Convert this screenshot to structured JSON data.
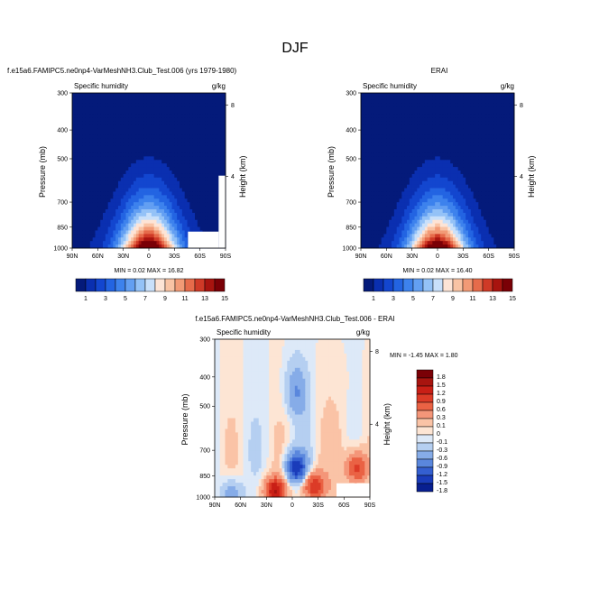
{
  "page": {
    "title": "DJF"
  },
  "panels": {
    "left": {
      "case_title": "f.e15a6.FAMIPC5.ne0np4-VarMeshNH3.Club_Test.006 (yrs 1979-1980)",
      "variable": "Specific humidity",
      "units": "g/kg",
      "ylabel": "Pressure (mb)",
      "ylabel_right": "Height (km)",
      "minmax": "MIN =  0.02  MAX =  16.82"
    },
    "right": {
      "case_title": "ERAI",
      "variable": "Specific humidity",
      "units": "g/kg",
      "ylabel": "Pressure (mb)",
      "ylabel_right": "Height (km)",
      "minmax": "MIN =  0.02  MAX =  16.40"
    },
    "diff": {
      "case_title": "f.e15a6.FAMIPC5.ne0np4-VarMeshNH3.Club_Test.006 - ERAI",
      "variable": "Specific humidity",
      "units": "g/kg",
      "ylabel": "Pressure (mb)",
      "ylabel_right": "Height (km)",
      "minmax": "MIN = -1.45  MAX =  1.80"
    }
  },
  "chart_data": [
    {
      "type": "heatmap",
      "name": "model",
      "x_tick_labels": [
        "90N",
        "60N",
        "30N",
        "0",
        "30S",
        "60S",
        "90S"
      ],
      "x_lat": [
        90,
        60,
        30,
        0,
        -30,
        -60,
        -90
      ],
      "y_tick_labels": [
        "300",
        "400",
        "500",
        "700",
        "850",
        "1000"
      ],
      "y_pressure": [
        300,
        400,
        500,
        700,
        850,
        1000
      ],
      "y_log_scale": true,
      "right_axis_ticks": [
        "8",
        "4"
      ],
      "right_axis_km": [
        8,
        4
      ],
      "levels": [
        1,
        2,
        3,
        4,
        5,
        6,
        7,
        8,
        9,
        10,
        11,
        12,
        13,
        14,
        15
      ],
      "colorbar_labels": [
        "1",
        "3",
        "5",
        "7",
        "9",
        "11",
        "13",
        "15"
      ],
      "min": 0.02,
      "max": 16.82,
      "peak_lat": 0,
      "peak_value": 16.8,
      "missing_region": "surface below 850 mb near 60S-90S"
    },
    {
      "type": "heatmap",
      "name": "reference",
      "x_tick_labels": [
        "90N",
        "60N",
        "30N",
        "0",
        "30S",
        "60S",
        "90S"
      ],
      "x_lat": [
        90,
        60,
        30,
        0,
        -30,
        -60,
        -90
      ],
      "y_tick_labels": [
        "300",
        "400",
        "500",
        "700",
        "850",
        "1000"
      ],
      "y_pressure": [
        300,
        400,
        500,
        700,
        850,
        1000
      ],
      "y_log_scale": true,
      "right_axis_ticks": [
        "8",
        "4"
      ],
      "right_axis_km": [
        8,
        4
      ],
      "levels": [
        1,
        2,
        3,
        4,
        5,
        6,
        7,
        8,
        9,
        10,
        11,
        12,
        13,
        14,
        15
      ],
      "colorbar_labels": [
        "1",
        "3",
        "5",
        "7",
        "9",
        "11",
        "13",
        "15"
      ],
      "min": 0.02,
      "max": 16.4,
      "peak_lat": 0,
      "peak_value": 16.4
    },
    {
      "type": "heatmap",
      "name": "difference",
      "x_tick_labels": [
        "90N",
        "60N",
        "30N",
        "0",
        "30S",
        "60S",
        "90S"
      ],
      "x_lat": [
        90,
        60,
        30,
        0,
        -30,
        -60,
        -90
      ],
      "y_tick_labels": [
        "300",
        "400",
        "500",
        "700",
        "850",
        "1000"
      ],
      "y_pressure": [
        300,
        400,
        500,
        700,
        850,
        1000
      ],
      "y_log_scale": true,
      "right_axis_ticks": [
        "8",
        "4"
      ],
      "right_axis_km": [
        8,
        4
      ],
      "levels": [
        1.8,
        1.5,
        1.2,
        0.9,
        0.6,
        0.3,
        0.1,
        0,
        -0.1,
        -0.3,
        -0.6,
        -0.9,
        -1.2,
        -1.5,
        -1.8
      ],
      "colorbar_labels": [
        "1.8",
        "1.5",
        "1.2",
        "0.9",
        "0.6",
        "0.3",
        "0.1",
        "0",
        "-0.1",
        "-0.3",
        "-0.6",
        "-0.9",
        "-1.2",
        "-1.5",
        "-1.8"
      ],
      "min": -1.45,
      "max": 1.8,
      "features": [
        {
          "lat": 20,
          "p": 950,
          "value": 1.5
        },
        {
          "lat": -25,
          "p": 920,
          "value": 1.2
        },
        {
          "lat": -75,
          "p": 800,
          "value": 1.0
        },
        {
          "lat": -5,
          "p": 800,
          "value": -1.45
        },
        {
          "lat": -5,
          "p": 450,
          "value": -0.6
        },
        {
          "lat": 70,
          "p": 970,
          "value": -0.5
        }
      ]
    }
  ],
  "colors": {
    "scale": [
      "#041a7a",
      "#0a2fb0",
      "#1346cf",
      "#2364e2",
      "#3d82ed",
      "#639ff2",
      "#94c2f7",
      "#c9e0fa",
      "#fde4d6",
      "#f9c3a4",
      "#f29a76",
      "#e66b4b",
      "#cf3a27",
      "#a8140f",
      "#7a0006"
    ],
    "diff_scale": [
      "#7a0006",
      "#a8140f",
      "#c91f16",
      "#dc3b27",
      "#ea6244",
      "#f49679",
      "#fac3a6",
      "#fde5d4",
      "#dde9f8",
      "#b5cff1",
      "#86ace8",
      "#5a87dd",
      "#345fd0",
      "#1a3cba",
      "#081f90"
    ]
  }
}
